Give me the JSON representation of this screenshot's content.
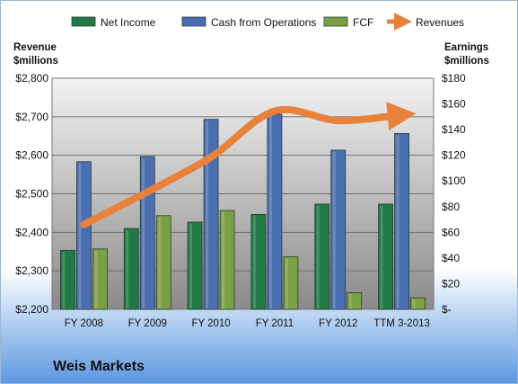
{
  "chart_data": {
    "type": "bar",
    "categories": [
      "FY 2008",
      "FY 2009",
      "FY 2010",
      "FY 2011",
      "FY 2012",
      "TTM 3-2013"
    ],
    "series": [
      {
        "name": "Net Income",
        "axis": "right",
        "color": "#1f7a45",
        "values": [
          46,
          63,
          68,
          74,
          82,
          82
        ]
      },
      {
        "name": "Cash from Operations",
        "axis": "right",
        "color": "#4a6fb0",
        "values": [
          115,
          119,
          148,
          152,
          124,
          137
        ]
      },
      {
        "name": "FCF",
        "axis": "right",
        "color": "#7ba043",
        "values": [
          47,
          73,
          77,
          41,
          13,
          9
        ]
      },
      {
        "name": "Revenues",
        "axis": "left",
        "type": "line",
        "color": "#e8813a",
        "values": [
          2420,
          2505,
          2595,
          2715,
          2690,
          2705
        ]
      }
    ],
    "left_axis": {
      "label_lines": [
        "Revenue",
        "$millions"
      ],
      "min": 2200,
      "max": 2800,
      "step": 100,
      "ticks": [
        "$2,200",
        "$2,300",
        "$2,400",
        "$2,500",
        "$2,600",
        "$2,700",
        "$2,800"
      ]
    },
    "right_axis": {
      "label_lines": [
        "Earnings",
        "$millions"
      ],
      "min": 0,
      "max": 180,
      "step": 20,
      "ticks": [
        "$-",
        "$20",
        "$40",
        "$60",
        "$80",
        "$100",
        "$120",
        "$140",
        "$160",
        "$180"
      ]
    },
    "grid": true,
    "legend": "top"
  },
  "company_name": "Weis Markets"
}
